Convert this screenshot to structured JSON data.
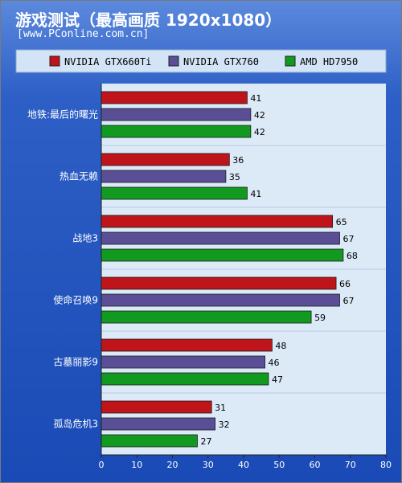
{
  "title": "游戏测试（最高画质 1920x1080）",
  "subtitle": "[www.PConline.com.cn]",
  "colors": {
    "background": "#2d5fc6",
    "plot_background": "#dceaf8",
    "legend_background": "#d2e4f5"
  },
  "chart_data": {
    "type": "bar",
    "orientation": "horizontal",
    "categories": [
      "地铁:最后的曙光",
      "热血无赖",
      "战地3",
      "使命召唤9",
      "古墓丽影9",
      "孤岛危机3"
    ],
    "series": [
      {
        "name": "NVIDIA GTX660Ti",
        "color": "#c0141b",
        "values": [
          41,
          36,
          65,
          66,
          48,
          31
        ]
      },
      {
        "name": "NVIDIA GTX760",
        "color": "#5a4f96",
        "values": [
          42,
          35,
          67,
          67,
          46,
          32
        ]
      },
      {
        "name": "AMD HD7950",
        "color": "#119a1f",
        "values": [
          42,
          41,
          68,
          59,
          47,
          27
        ]
      }
    ],
    "xlim": [
      0,
      80
    ],
    "xticks": [
      0,
      10,
      20,
      30,
      40,
      50,
      60,
      70,
      80
    ],
    "legend_position": "top",
    "data_labels": true
  }
}
